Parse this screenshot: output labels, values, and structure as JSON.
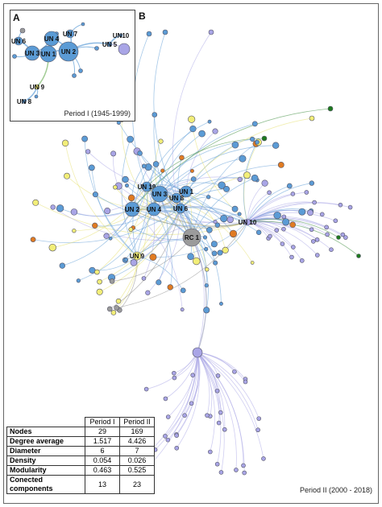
{
  "panel_a": {
    "label": "A",
    "caption": "Period I (1945-1999)",
    "node_labels": [
      "UN 6",
      "UN 4",
      "UN 7",
      "UN10",
      "UN 5",
      "UN 3",
      "UN 1",
      "UN 2",
      "UN 9",
      "UN 8"
    ]
  },
  "panel_b": {
    "label": "B",
    "caption": "Period II (2000 - 2018)",
    "node_labels": [
      "UN 19",
      "UN 3",
      "UN 1",
      "UN 8",
      "UN 2",
      "UN 4",
      "UN 6",
      "UN 10",
      "RC 1",
      "UN 9"
    ]
  },
  "table": {
    "columns": [
      "Period I",
      "Period II"
    ],
    "rows": [
      [
        "Nodes",
        "29",
        "169"
      ],
      [
        "Degree average",
        "1.517",
        "4.426"
      ],
      [
        "Diameter",
        "6",
        "7"
      ],
      [
        "Density",
        "0.054",
        "0.026"
      ],
      [
        "Modularity",
        "0.463",
        "0.525"
      ],
      [
        "Conected components",
        "13",
        "23"
      ]
    ]
  }
}
